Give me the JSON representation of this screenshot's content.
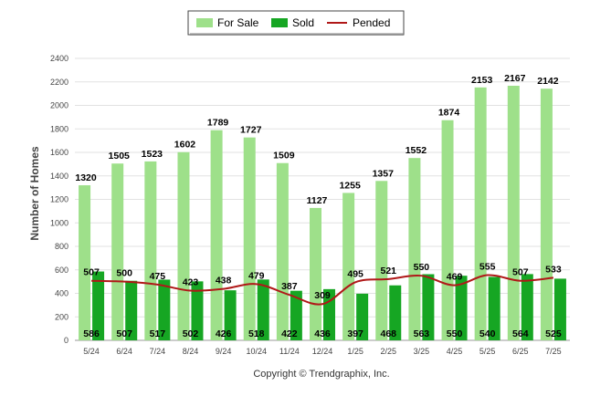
{
  "chart_data": {
    "type": "bar",
    "categories": [
      "5/24",
      "6/24",
      "7/24",
      "8/24",
      "9/24",
      "10/24",
      "11/24",
      "12/24",
      "1/25",
      "2/25",
      "3/25",
      "4/25",
      "5/25",
      "6/25",
      "7/25"
    ],
    "series": [
      {
        "name": "For Sale",
        "type": "bar",
        "color": "#9ee08a",
        "values": [
          1320,
          1505,
          1523,
          1602,
          1789,
          1727,
          1509,
          1127,
          1255,
          1357,
          1552,
          1874,
          2153,
          2167,
          2142
        ]
      },
      {
        "name": "Sold",
        "type": "bar",
        "color": "#16a623",
        "values": [
          586,
          507,
          517,
          502,
          426,
          518,
          422,
          436,
          397,
          468,
          563,
          550,
          540,
          564,
          525
        ]
      },
      {
        "name": "Pended",
        "type": "line",
        "color": "#b01818",
        "values": [
          507,
          500,
          475,
          423,
          438,
          479,
          387,
          309,
          495,
          521,
          550,
          469,
          555,
          507,
          533
        ]
      }
    ],
    "ylabel": "Number of Homes",
    "ylim": [
      0,
      2400
    ],
    "yticks": [
      0,
      200,
      400,
      600,
      800,
      1000,
      1200,
      1400,
      1600,
      1800,
      2000,
      2200,
      2400
    ],
    "grid": true,
    "legend_position": "top-center",
    "footer": "Copyright © Trendgraphix, Inc."
  }
}
